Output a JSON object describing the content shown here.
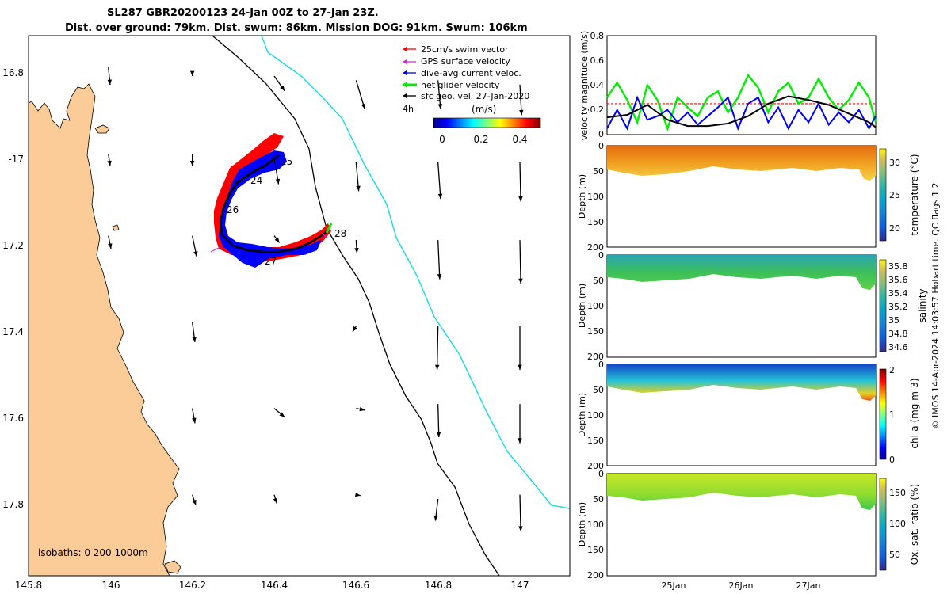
{
  "header": {
    "line1": "SL287 GBR20200123 24-Jan 00Z to 27-Jan 23Z.",
    "line2": "Dist. over ground: 79km. Dist. swum: 86km. Mission DOG: 91km. Swum: 106km"
  },
  "credit": "© IMOS 14-Apr-2024 14:03:57 Hobart time. QC flags 1  2",
  "colors": {
    "land": "#fbcb98",
    "shelf_edge": "#000000",
    "isobath_1000": "#22dde0",
    "swim_vector": "#ff0000",
    "gps_velocity": "#e020e0",
    "current": "#0000ff",
    "net_velocity": "#00ee00",
    "geo_vel": "#000000"
  },
  "map": {
    "legend": [
      {
        "label": "25cm/s swim vector",
        "color": "#ff0000"
      },
      {
        "label": "GPS surface velocity",
        "color": "#e020e0"
      },
      {
        "label": "dive-avg current veloc.",
        "color": "#0000ff"
      },
      {
        "label": "net glider velocity",
        "color": "#00ee00"
      },
      {
        "label": "sfc geo. vel. 27-Jan-2020",
        "color": "#000000"
      }
    ],
    "interval_label": "4h",
    "colorbar": {
      "title": "(m/s)",
      "ticks": [
        "0",
        "0.2",
        "0.4"
      ]
    },
    "isobath_note": "isobaths: 0   200  1000m",
    "lon_ticks": [
      "145.8",
      "146",
      "146.2",
      "146.4",
      "146.6",
      "146.8",
      "147"
    ],
    "lat_ticks": [
      "16.8",
      "-17",
      "17.2",
      "17.4",
      "17.6",
      "17.8"
    ],
    "day_labels": [
      "24",
      "25",
      "26",
      "27",
      "28"
    ],
    "geo_arrows": [
      {
        "lon": 145.995,
        "lat": -16.78,
        "u": 0.02,
        "v": -0.2
      },
      {
        "lon": 146.2,
        "lat": -16.79,
        "u": 0,
        "v": -0.05
      },
      {
        "lon": 146.4,
        "lat": -16.8,
        "u": 0.12,
        "v": -0.17
      },
      {
        "lon": 146.6,
        "lat": -16.81,
        "u": 0.1,
        "v": -0.33
      },
      {
        "lon": 146.8,
        "lat": -16.81,
        "u": 0.03,
        "v": -0.33
      },
      {
        "lon": 147,
        "lat": -16.82,
        "u": 0.02,
        "v": -0.35
      },
      {
        "lon": 145.995,
        "lat": -16.98,
        "u": 0.02,
        "v": -0.14
      },
      {
        "lon": 146.2,
        "lat": -16.98,
        "u": 0,
        "v": -0.14
      },
      {
        "lon": 146.4,
        "lat": -16.99,
        "u": 0.05,
        "v": -0.3
      },
      {
        "lon": 146.6,
        "lat": -17,
        "u": 0.03,
        "v": -0.33
      },
      {
        "lon": 146.8,
        "lat": -17,
        "u": 0.03,
        "v": -0.42
      },
      {
        "lon": 147,
        "lat": -17,
        "u": 0.01,
        "v": -0.45
      },
      {
        "lon": 145.995,
        "lat": -17.17,
        "u": 0.03,
        "v": -0.15
      },
      {
        "lon": 146.2,
        "lat": -17.17,
        "u": 0.05,
        "v": -0.24
      },
      {
        "lon": 146.4,
        "lat": -17.17,
        "u": 0.06,
        "v": -0.08
      },
      {
        "lon": 146.6,
        "lat": -17.18,
        "u": 0.01,
        "v": -0.15
      },
      {
        "lon": 146.8,
        "lat": -17.18,
        "u": 0.02,
        "v": -0.45
      },
      {
        "lon": 147,
        "lat": -17.18,
        "u": 0.01,
        "v": -0.5
      },
      {
        "lon": 146.2,
        "lat": -17.37,
        "u": 0.03,
        "v": -0.23
      },
      {
        "lon": 146.6,
        "lat": -17.38,
        "u": -0.04,
        "v": -0.06
      },
      {
        "lon": 146.8,
        "lat": -17.38,
        "u": -0.01,
        "v": -0.5
      },
      {
        "lon": 147,
        "lat": -17.38,
        "u": 0,
        "v": -0.5
      },
      {
        "lon": 146.2,
        "lat": -17.57,
        "u": 0.03,
        "v": -0.17
      },
      {
        "lon": 146.4,
        "lat": -17.57,
        "u": 0.12,
        "v": -0.1
      },
      {
        "lon": 146.6,
        "lat": -17.57,
        "u": 0.1,
        "v": -0.02
      },
      {
        "lon": 146.8,
        "lat": -17.56,
        "u": 0.01,
        "v": -0.38
      },
      {
        "lon": 147,
        "lat": -17.56,
        "u": 0,
        "v": -0.45
      },
      {
        "lon": 146.2,
        "lat": -17.77,
        "u": 0.04,
        "v": -0.12
      },
      {
        "lon": 146.4,
        "lat": -17.77,
        "u": 0.03,
        "v": -0.1
      },
      {
        "lon": 146.6,
        "lat": -17.77,
        "u": 0.05,
        "v": -0.01
      },
      {
        "lon": 146.8,
        "lat": -17.78,
        "u": -0.03,
        "v": -0.25
      },
      {
        "lon": 147,
        "lat": -17.77,
        "u": 0.01,
        "v": -0.42
      }
    ]
  },
  "chart_data": [
    {
      "type": "line",
      "ylabel": "velocity magnitude (m/s)",
      "ylim": [
        0,
        0.8
      ],
      "yticks": [
        "0",
        "0.2",
        "0.4",
        "0.6",
        "0.8"
      ],
      "reference_line": 0.25,
      "series": [
        {
          "name": "net glider velocity",
          "color": "#00ee00",
          "days": [
            0,
            0.15,
            0.3,
            0.45,
            0.6,
            0.75,
            0.9,
            1.05,
            1.2,
            1.35,
            1.5,
            1.65,
            1.8,
            1.95,
            2.1,
            2.25,
            2.4,
            2.55,
            2.7,
            2.85,
            3,
            3.15,
            3.3,
            3.45,
            3.6,
            3.75,
            3.9,
            4
          ],
          "values": [
            0.3,
            0.42,
            0.28,
            0.1,
            0.4,
            0.28,
            0.05,
            0.3,
            0.22,
            0.15,
            0.3,
            0.35,
            0.18,
            0.3,
            0.48,
            0.38,
            0.18,
            0.35,
            0.42,
            0.25,
            0.3,
            0.45,
            0.3,
            0.2,
            0.28,
            0.42,
            0.3,
            0.1
          ]
        },
        {
          "name": "dive-avg current veloc.",
          "color": "#0000ff",
          "days": [
            0,
            0.15,
            0.3,
            0.45,
            0.6,
            0.75,
            0.9,
            1.05,
            1.2,
            1.35,
            1.5,
            1.65,
            1.8,
            1.95,
            2.1,
            2.25,
            2.4,
            2.55,
            2.7,
            2.85,
            3,
            3.15,
            3.3,
            3.45,
            3.6,
            3.75,
            3.9,
            4
          ],
          "values": [
            0.05,
            0.2,
            0.05,
            0.3,
            0.12,
            0.15,
            0.2,
            0.1,
            0.18,
            0.08,
            0.15,
            0.22,
            0.3,
            0.05,
            0.25,
            0.3,
            0.1,
            0.22,
            0.05,
            0.2,
            0.1,
            0.25,
            0.08,
            0.18,
            0.1,
            0.2,
            0.05,
            0.15
          ]
        },
        {
          "name": "sfc geo. vel. 27-Jan-2020",
          "color": "#000000",
          "days": [
            0,
            0.3,
            0.6,
            0.9,
            1.2,
            1.5,
            1.8,
            2.1,
            2.4,
            2.7,
            3,
            3.3,
            3.6,
            3.9,
            4
          ],
          "values": [
            0.14,
            0.16,
            0.24,
            0.12,
            0.07,
            0.07,
            0.09,
            0.15,
            0.25,
            0.31,
            0.28,
            0.24,
            0.17,
            0.1,
            0.06
          ]
        }
      ]
    },
    {
      "type": "heatmap",
      "variable": "temperature",
      "ylabel": "Depth (m)",
      "ylim": [
        200,
        0
      ],
      "yticks": [
        "0",
        "50",
        "100",
        "150",
        "200"
      ],
      "colorbar_label": "temperature (°C)",
      "clim": [
        18,
        32
      ],
      "colorbar_ticks": [
        "20",
        "25",
        "30"
      ]
    },
    {
      "type": "heatmap",
      "variable": "salinity",
      "ylabel": "Depth (m)",
      "ylim": [
        200,
        0
      ],
      "yticks": [
        "0",
        "50",
        "100",
        "150",
        "200"
      ],
      "colorbar_label": "salinity",
      "clim": [
        34.5,
        35.9
      ],
      "colorbar_ticks": [
        "34.6",
        "34.8",
        "35",
        "35.2",
        "35.4",
        "35.6",
        "35.8"
      ]
    },
    {
      "type": "heatmap",
      "variable": "chl-a",
      "ylabel": "Depth (m)",
      "ylim": [
        200,
        0
      ],
      "yticks": [
        "0",
        "50",
        "100",
        "150",
        "200"
      ],
      "colorbar_label": "chl-a (mg m-3)",
      "clim": [
        0,
        2
      ],
      "colorbar_ticks": [
        "0",
        "1",
        "2"
      ]
    },
    {
      "type": "heatmap",
      "variable": "oxygen",
      "ylabel": "Depth (m)",
      "ylim": [
        200,
        0
      ],
      "yticks": [
        "0",
        "50",
        "100",
        "150",
        "200"
      ],
      "colorbar_label": "Ox. sat. ratio (%)",
      "clim": [
        25,
        175
      ],
      "colorbar_ticks": [
        "50",
        "100",
        "150"
      ],
      "xticks": [
        "25Jan",
        "26Jan",
        "27Jan"
      ]
    }
  ]
}
